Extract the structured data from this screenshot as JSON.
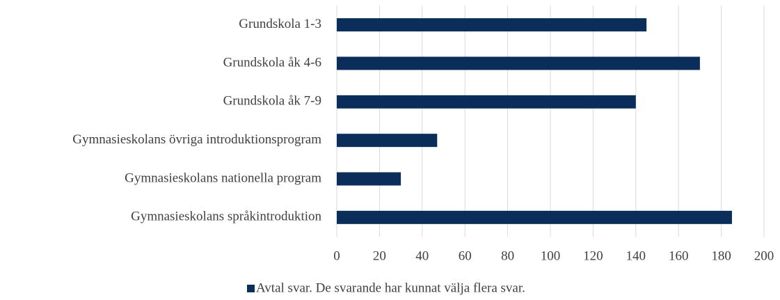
{
  "chart_data": {
    "type": "bar",
    "orientation": "horizontal",
    "categories": [
      "Grundskola 1-3",
      "Grundskola åk 4-6",
      "Grundskola åk 7-9",
      "Gymnasieskolans övriga introduktionsprogram",
      "Gymnasieskolans nationella program",
      "Gymnasieskolans språkintroduktion"
    ],
    "series": [
      {
        "name": "Avtal svar. De svarande har kunnat välja flera svar.",
        "color": "#0b2d5a",
        "values": [
          145,
          170,
          140,
          47,
          30,
          185
        ]
      }
    ],
    "xlim": [
      0,
      200
    ],
    "xticks": [
      0,
      20,
      40,
      60,
      80,
      100,
      120,
      140,
      160,
      180,
      200
    ],
    "grid": true,
    "legend": "bottom"
  }
}
